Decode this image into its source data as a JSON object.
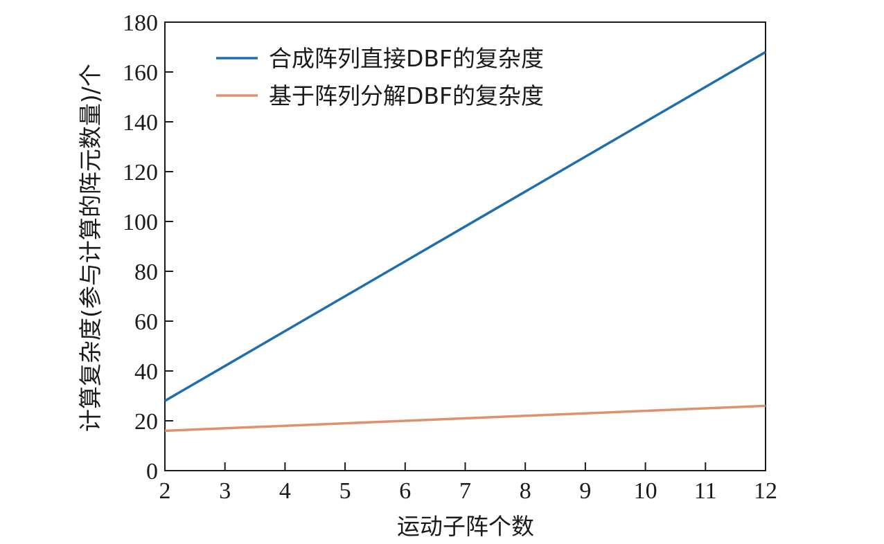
{
  "chart_data": {
    "type": "line",
    "title": "",
    "xlabel": "运动子阵个数",
    "ylabel": "计算复杂度(参与计算的阵元数量)/个",
    "xlim": [
      2,
      12
    ],
    "ylim": [
      0,
      180
    ],
    "xticks": [
      2,
      3,
      4,
      5,
      6,
      7,
      8,
      9,
      10,
      11,
      12
    ],
    "yticks": [
      0,
      20,
      40,
      60,
      80,
      100,
      120,
      140,
      160,
      180
    ],
    "x": [
      2,
      3,
      4,
      5,
      6,
      7,
      8,
      9,
      10,
      11,
      12
    ],
    "series": [
      {
        "name": "合成阵列直接DBF的复杂度",
        "color": "#1f6ead",
        "values": [
          28,
          42,
          56,
          70,
          84,
          98,
          112,
          126,
          140,
          154,
          168
        ]
      },
      {
        "name": "基于阵列分解DBF的复杂度",
        "color": "#e0916b",
        "values": [
          16,
          17,
          18,
          19,
          20,
          21,
          22,
          23,
          24,
          25,
          26
        ]
      }
    ],
    "grid": false,
    "legend_position": "top-left"
  }
}
